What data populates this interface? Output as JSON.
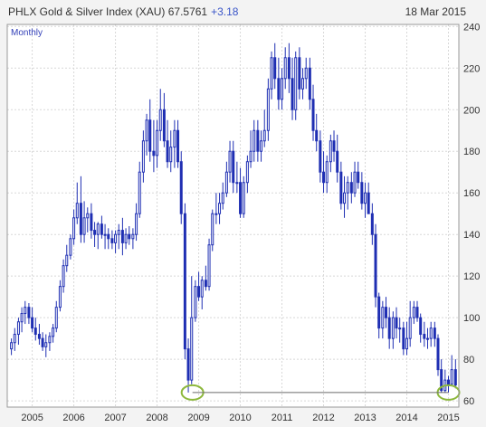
{
  "header": {
    "title": "PHLX Gold & Silver Index (XAU) 67.5761",
    "change": "+3.18",
    "date": "18 Mar 2015"
  },
  "colors": {
    "candle": "#1f2fb3",
    "highlight_ring": "#8db83c",
    "support_line": "#6b6b6b",
    "grid": "#d8d8d8",
    "plot_bg": "#ffffff"
  },
  "chart_data": {
    "type": "candlestick",
    "period_label": "Monthly",
    "x_tick_labels": [
      "2005",
      "2006",
      "2007",
      "2008",
      "2009",
      "2010",
      "2011",
      "2012",
      "2013",
      "2014",
      "2015"
    ],
    "x_tick_positions": [
      2005,
      2006,
      2007,
      2008,
      2009,
      2010,
      2011,
      2012,
      2013,
      2014,
      2015
    ],
    "xlim": [
      2004.4,
      2015.25
    ],
    "y_tick_labels": [
      "60",
      "80",
      "100",
      "120",
      "140",
      "160",
      "180",
      "200",
      "220",
      "240"
    ],
    "y_tick_values": [
      60,
      80,
      100,
      120,
      140,
      160,
      180,
      200,
      220,
      240
    ],
    "ylim": [
      57,
      241
    ],
    "y_axis_side": "right",
    "grid": true,
    "annotations": [
      {
        "type": "ellipse",
        "x": 2008.85,
        "y": 64
      },
      {
        "type": "ellipse",
        "x": 2015.0,
        "y": 64
      },
      {
        "type": "hline",
        "y": 64,
        "x_from": 2008.85,
        "x_to": 2015.0
      }
    ],
    "series": [
      {
        "x": [
          2004.5,
          2004.58,
          2004.67,
          2004.75,
          2004.83,
          2004.92,
          2005.0,
          2005.08,
          2005.17,
          2005.25,
          2005.33,
          2005.42,
          2005.5,
          2005.58,
          2005.67,
          2005.75,
          2005.83,
          2005.92,
          2006.0,
          2006.08,
          2006.17,
          2006.25,
          2006.33,
          2006.42,
          2006.5,
          2006.58,
          2006.67,
          2006.75,
          2006.83,
          2006.92,
          2007.0,
          2007.08,
          2007.17,
          2007.25,
          2007.33,
          2007.42,
          2007.5,
          2007.58,
          2007.67,
          2007.75,
          2007.83,
          2007.92,
          2008.0,
          2008.08,
          2008.17,
          2008.25,
          2008.33,
          2008.42,
          2008.5,
          2008.58,
          2008.67,
          2008.75,
          2008.83,
          2008.92,
          2009.0,
          2009.08,
          2009.17,
          2009.25,
          2009.33,
          2009.42,
          2009.5,
          2009.58,
          2009.67,
          2009.75,
          2009.83,
          2009.92,
          2010.0,
          2010.08,
          2010.17,
          2010.25,
          2010.33,
          2010.42,
          2010.5,
          2010.58,
          2010.67,
          2010.75,
          2010.83,
          2010.92,
          2011.0,
          2011.08,
          2011.17,
          2011.25,
          2011.33,
          2011.42,
          2011.5,
          2011.58,
          2011.67,
          2011.75,
          2011.83,
          2011.92,
          2012.0,
          2012.08,
          2012.17,
          2012.25,
          2012.33,
          2012.42,
          2012.5,
          2012.58,
          2012.67,
          2012.75,
          2012.83,
          2012.92,
          2013.0,
          2013.08,
          2013.17,
          2013.25,
          2013.33,
          2013.42,
          2013.5,
          2013.58,
          2013.67,
          2013.75,
          2013.83,
          2013.92,
          2014.0,
          2014.08,
          2014.17,
          2014.25,
          2014.33,
          2014.42,
          2014.5,
          2014.58,
          2014.67,
          2014.75,
          2014.83,
          2014.92,
          2015.0,
          2015.08,
          2015.17
        ],
        "open": [
          85,
          88,
          92,
          98,
          102,
          105,
          100,
          95,
          92,
          90,
          86,
          88,
          91,
          95,
          105,
          115,
          125,
          130,
          138,
          148,
          155,
          140,
          148,
          150,
          142,
          140,
          145,
          140,
          140,
          138,
          136,
          140,
          142,
          136,
          140,
          138,
          140,
          150,
          170,
          185,
          195,
          180,
          178,
          190,
          200,
          185,
          175,
          182,
          190,
          175,
          150,
          85,
          70,
          100,
          115,
          110,
          118,
          115,
          135,
          150,
          150,
          155,
          160,
          170,
          180,
          165,
          165,
          150,
          165,
          175,
          180,
          190,
          180,
          185,
          190,
          210,
          225,
          215,
          205,
          215,
          225,
          215,
          200,
          225,
          210,
          215,
          220,
          205,
          190,
          185,
          170,
          165,
          175,
          185,
          180,
          170,
          155,
          160,
          165,
          160,
          170,
          165,
          155,
          160,
          150,
          140,
          110,
          95,
          105,
          100,
          90,
          100,
          95,
          95,
          85,
          90,
          100,
          105,
          100,
          92,
          90,
          90,
          95,
          90,
          75,
          65,
          70,
          68,
          75
        ],
        "high": [
          90,
          95,
          100,
          105,
          108,
          107,
          105,
          100,
          97,
          93,
          92,
          93,
          97,
          108,
          118,
          128,
          135,
          140,
          152,
          165,
          168,
          156,
          153,
          155,
          146,
          146,
          149,
          145,
          143,
          142,
          142,
          145,
          148,
          143,
          144,
          143,
          155,
          175,
          190,
          198,
          205,
          195,
          195,
          210,
          208,
          195,
          190,
          195,
          195,
          180,
          155,
          90,
          120,
          118,
          122,
          120,
          125,
          138,
          152,
          160,
          160,
          165,
          175,
          185,
          185,
          175,
          172,
          168,
          178,
          190,
          195,
          195,
          190,
          200,
          215,
          228,
          232,
          225,
          220,
          230,
          232,
          225,
          228,
          230,
          220,
          225,
          225,
          212,
          198,
          190,
          180,
          178,
          188,
          190,
          188,
          175,
          168,
          168,
          170,
          175,
          175,
          170,
          165,
          165,
          155,
          145,
          112,
          108,
          110,
          105,
          103,
          105,
          100,
          98,
          98,
          108,
          108,
          108,
          102,
          98,
          95,
          98,
          98,
          92,
          80,
          75,
          72,
          82,
          80
        ],
        "low": [
          82,
          84,
          87,
          93,
          97,
          97,
          93,
          89,
          87,
          84,
          81,
          84,
          88,
          93,
          103,
          112,
          122,
          128,
          135,
          145,
          136,
          136,
          141,
          138,
          134,
          133,
          138,
          133,
          133,
          133,
          131,
          133,
          130,
          133,
          135,
          133,
          137,
          148,
          165,
          178,
          175,
          170,
          172,
          185,
          182,
          172,
          170,
          172,
          172,
          145,
          80,
          64,
          68,
          98,
          108,
          104,
          113,
          113,
          132,
          145,
          145,
          152,
          158,
          165,
          160,
          160,
          148,
          148,
          160,
          172,
          175,
          175,
          175,
          182,
          185,
          205,
          210,
          200,
          200,
          210,
          208,
          195,
          195,
          205,
          205,
          210,
          200,
          185,
          180,
          165,
          160,
          160,
          170,
          175,
          165,
          152,
          148,
          152,
          155,
          158,
          162,
          152,
          148,
          150,
          135,
          105,
          90,
          90,
          95,
          85,
          85,
          90,
          88,
          82,
          82,
          86,
          97,
          98,
          88,
          86,
          85,
          86,
          86,
          72,
          64,
          64,
          64,
          68,
          66
        ],
        "close": [
          88,
          92,
          98,
          102,
          105,
          100,
          95,
          92,
          90,
          86,
          88,
          91,
          95,
          105,
          115,
          125,
          130,
          138,
          148,
          155,
          140,
          148,
          150,
          142,
          140,
          145,
          140,
          140,
          138,
          136,
          140,
          142,
          136,
          140,
          138,
          140,
          150,
          170,
          185,
          195,
          180,
          178,
          190,
          200,
          185,
          175,
          182,
          190,
          175,
          150,
          85,
          70,
          100,
          115,
          110,
          118,
          115,
          135,
          150,
          150,
          155,
          160,
          170,
          180,
          165,
          165,
          150,
          165,
          175,
          180,
          190,
          180,
          185,
          190,
          210,
          225,
          215,
          205,
          215,
          225,
          215,
          200,
          225,
          210,
          215,
          220,
          205,
          190,
          185,
          170,
          165,
          175,
          185,
          180,
          170,
          155,
          160,
          165,
          160,
          170,
          165,
          155,
          160,
          150,
          140,
          110,
          95,
          105,
          100,
          90,
          100,
          95,
          95,
          85,
          90,
          100,
          105,
          100,
          92,
          90,
          90,
          95,
          90,
          75,
          65,
          70,
          68,
          75,
          67.6
        ]
      }
    ]
  }
}
